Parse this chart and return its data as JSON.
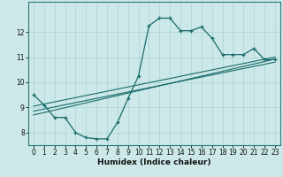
{
  "title": "",
  "xlabel": "Humidex (Indice chaleur)",
  "ylabel": "",
  "bg_color": "#cce8e8",
  "line_color": "#1a6b6b",
  "grid_color": "#aad4d4",
  "xlim": [
    -0.5,
    23.5
  ],
  "ylim": [
    7.5,
    13.2
  ],
  "xticks": [
    0,
    1,
    2,
    3,
    4,
    5,
    6,
    7,
    8,
    9,
    10,
    11,
    12,
    13,
    14,
    15,
    16,
    17,
    18,
    19,
    20,
    21,
    22,
    23
  ],
  "yticks": [
    8,
    9,
    10,
    11,
    12
  ],
  "main_x": [
    0,
    1,
    2,
    3,
    4,
    5,
    6,
    7,
    8,
    9,
    10,
    11,
    12,
    13,
    14,
    15,
    16,
    17,
    18,
    19,
    20,
    21,
    22,
    23
  ],
  "main_y": [
    9.5,
    9.1,
    8.6,
    8.6,
    8.0,
    7.8,
    7.75,
    7.75,
    8.4,
    9.35,
    10.25,
    12.25,
    12.55,
    12.55,
    12.05,
    12.05,
    12.2,
    11.75,
    11.1,
    11.1,
    11.1,
    11.35,
    10.9,
    10.9
  ],
  "line1_x": [
    0,
    23
  ],
  "line1_y": [
    9.05,
    11.0
  ],
  "line2_x": [
    0,
    23
  ],
  "line2_y": [
    8.85,
    10.8
  ],
  "line3_x": [
    0,
    23
  ],
  "line3_y": [
    8.7,
    10.92
  ],
  "xlabel_fontsize": 6.5,
  "tick_fontsize": 5.5
}
